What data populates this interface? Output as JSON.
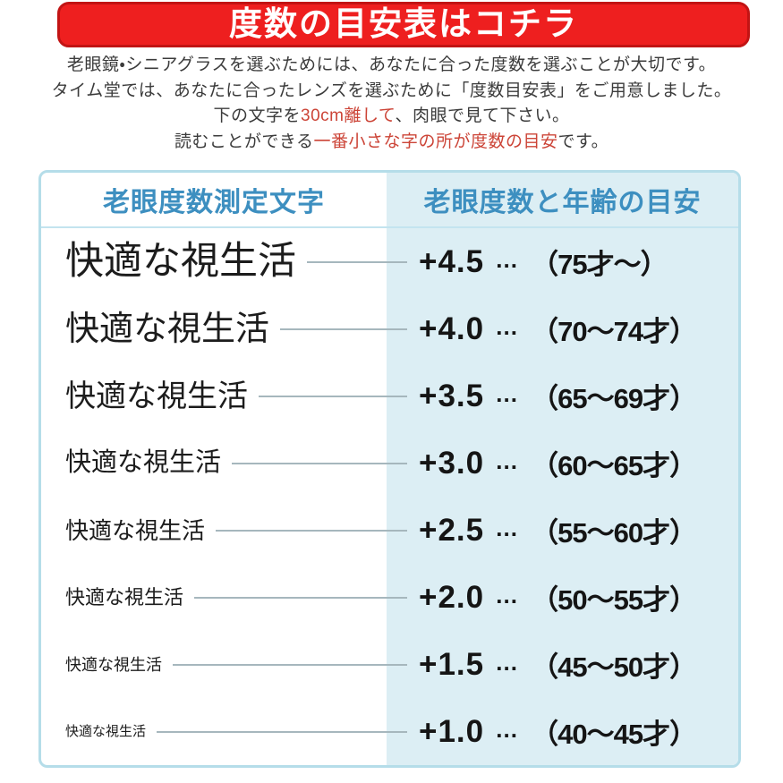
{
  "banner": {
    "title": "度数の目安表はコチラ"
  },
  "intro": {
    "line1": "老眼鏡・シニアグラスを選ぶためには、あなたに合った度数を選ぶことが大切です。",
    "line2": "タイム堂では、あなたに合ったレンズを選ぶために「度数目安表」をご用意しました。",
    "line3_pre": "下の文字を",
    "line3_highlight": "30cm離して",
    "line3_post": "、肉眼で見て下さい。",
    "line4_pre": "読むことができる",
    "line4_highlight": "一番小さな字の所が度数の目安",
    "line4_post": "です。"
  },
  "table": {
    "header": {
      "left": "老眼度数測定文字",
      "right": "老眼度数と年齢の目安"
    },
    "rows": [
      {
        "test_label": "快適な視生活",
        "power": "+4.5",
        "dots": "…",
        "age": "（75才～）"
      },
      {
        "test_label": "快適な視生活",
        "power": "+4.0",
        "dots": "…",
        "age": "（70～74才）"
      },
      {
        "test_label": "快適な視生活",
        "power": "+3.5",
        "dots": "…",
        "age": "（65～69才）"
      },
      {
        "test_label": "快適な視生活",
        "power": "+3.0",
        "dots": "…",
        "age": "（60～65才）"
      },
      {
        "test_label": "快適な視生活",
        "power": "+2.5",
        "dots": "…",
        "age": "（55～60才）"
      },
      {
        "test_label": "快適な視生活",
        "power": "+2.0",
        "dots": "…",
        "age": "（50～55才）"
      },
      {
        "test_label": "快適な視生活",
        "power": "+1.5",
        "dots": "…",
        "age": "（45～50才）"
      },
      {
        "test_label": "快適な視生活",
        "power": "+1.0",
        "dots": "…",
        "age": "（40～45才）"
      }
    ]
  },
  "colors": {
    "banner_red": "#ee1f1f",
    "banner_border_red": "#c21414",
    "accent_red": "#cc4437",
    "header_blue": "#3d8fc0",
    "column_blue": "#dceef4",
    "border_blue": "#b5dde9"
  }
}
